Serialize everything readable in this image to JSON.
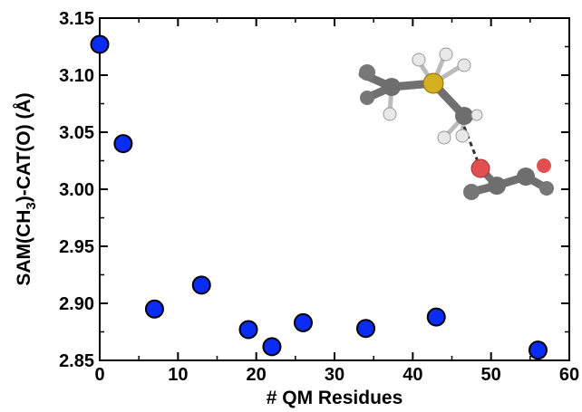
{
  "chart_data": {
    "type": "scatter",
    "xlabel": "# QM Residues",
    "ylabel_parts": [
      "SAM(CH",
      "3",
      ")-CAT(O) (Å)"
    ],
    "xlim": [
      0,
      60
    ],
    "ylim": [
      2.85,
      3.15
    ],
    "x_ticks": [
      "0",
      "10",
      "20",
      "30",
      "40",
      "50",
      "60"
    ],
    "y_ticks": [
      "2.85",
      "2.90",
      "2.95",
      "3.00",
      "3.05",
      "3.10",
      "3.15"
    ],
    "grid": false,
    "marker": {
      "shape": "circle",
      "fill": "#0a2cf5",
      "edge": "#000000"
    },
    "series": [
      {
        "x": [
          0,
          3,
          7,
          13,
          19,
          22,
          26,
          34,
          43,
          56
        ],
        "y": [
          3.127,
          3.04,
          2.895,
          2.916,
          2.877,
          2.862,
          2.883,
          2.878,
          2.888,
          2.859
        ]
      }
    ]
  },
  "inset": {
    "description_icon": "molecule-structure-icon",
    "colors": {
      "carbon": "#6e6e6e",
      "hydrogen": "#e8e8e8",
      "sulfur": "#d4b020",
      "oxygen": "#e05050"
    }
  }
}
